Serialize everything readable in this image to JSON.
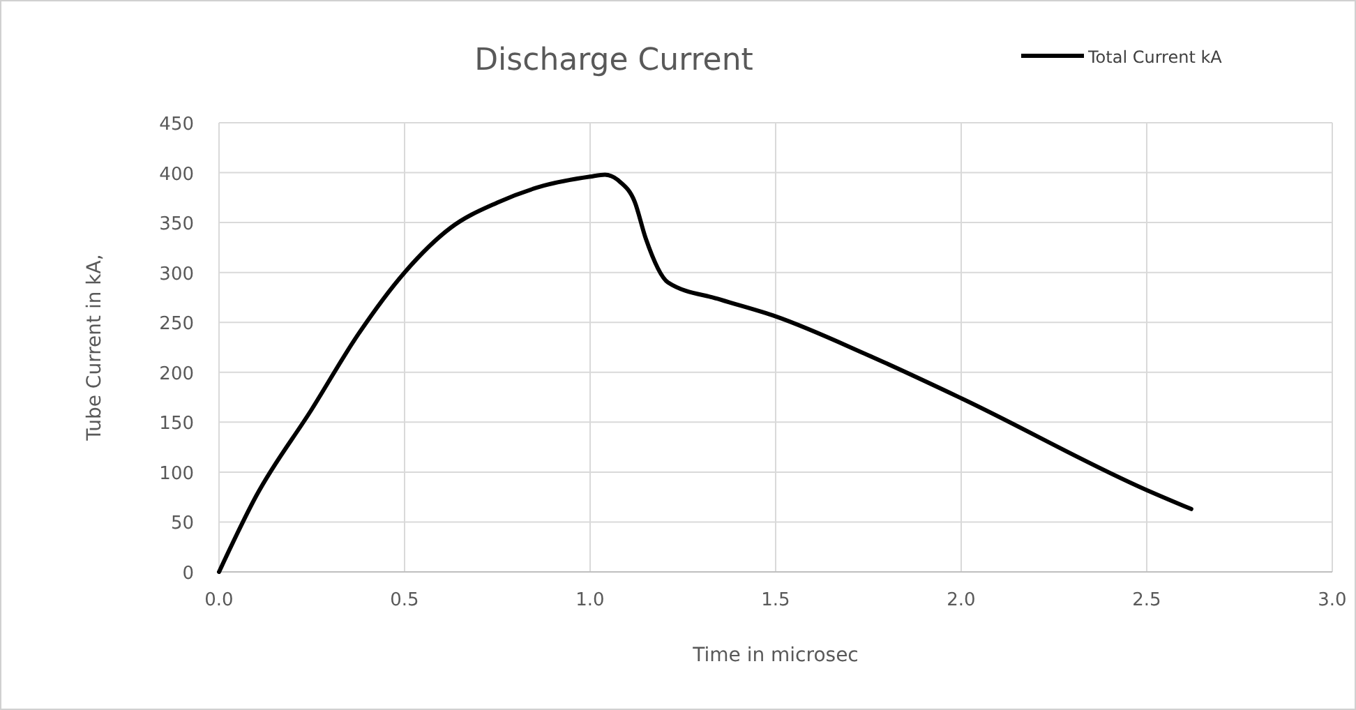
{
  "chart_data": {
    "type": "line",
    "title": "Discharge Current",
    "xlabel": "Time in microsec",
    "ylabel": "Tube Current  in kA,",
    "x": [
      0,
      0.1,
      0.25,
      0.375,
      0.5,
      0.625,
      0.75,
      0.875,
      1.0,
      1.04,
      1.08,
      1.12,
      1.15,
      1.21,
      1.35,
      1.5,
      1.75,
      2.0,
      2.5,
      2.62
    ],
    "series": [
      {
        "name": "Total Current kA",
        "color": "#000000",
        "values": [
          0,
          76,
          163,
          238,
          300,
          345,
          370,
          387,
          396,
          398,
          391,
          371,
          334,
          290,
          273,
          256,
          217,
          174,
          82,
          63
        ]
      }
    ],
    "xlim": [
      0,
      3
    ],
    "xticks": [
      {
        "value": 0,
        "label": "0.0"
      },
      {
        "value": 0.5,
        "label": "0.5"
      },
      {
        "value": 1,
        "label": "1.0"
      },
      {
        "value": 1.5,
        "label": "1.5"
      },
      {
        "value": 2,
        "label": "2.0"
      },
      {
        "value": 2.5,
        "label": "2.5"
      },
      {
        "value": 3,
        "label": "3.0"
      }
    ],
    "ylim": [
      0,
      450
    ],
    "yticks": [
      0,
      50,
      100,
      150,
      200,
      250,
      300,
      350,
      400,
      450
    ],
    "grid": true,
    "legend": "top right",
    "marker": "none",
    "line_style": "solid"
  }
}
